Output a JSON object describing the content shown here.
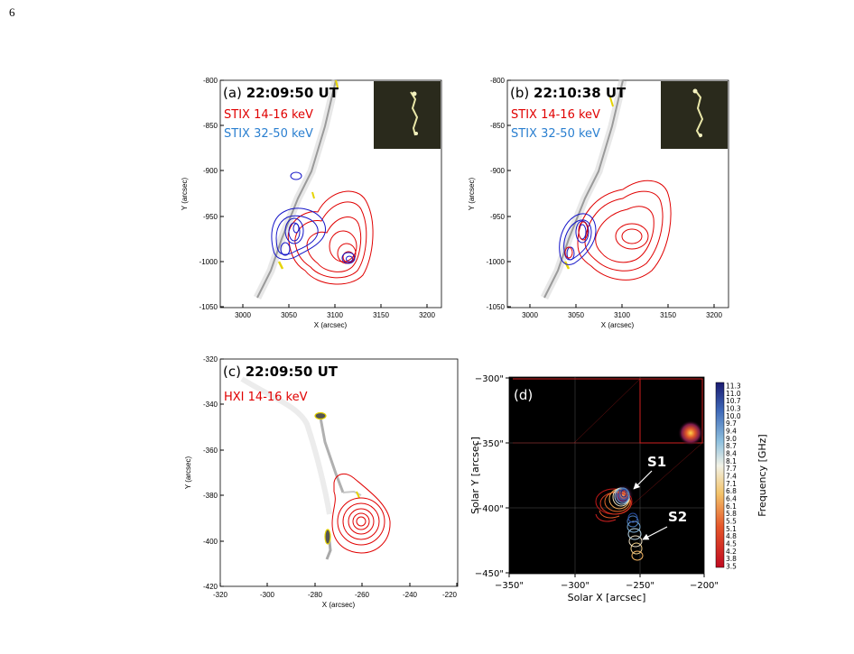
{
  "page_number": "6",
  "colors": {
    "red": "#e00000",
    "blue": "#1010c8",
    "light_blue": "#2a7fd0"
  },
  "panel_a": {
    "label": "(a)",
    "time": "22:09:50 UT",
    "legend": [
      "STIX 14-16 keV",
      "STIX 32-50 keV"
    ],
    "x_ticks": [
      "3000",
      "3050",
      "3100",
      "3150",
      "3200"
    ],
    "y_ticks": [
      "-800",
      "-850",
      "-900",
      "-950",
      "-1000",
      "-1050"
    ],
    "xlabel": "X (arcsec)",
    "ylabel": "Y (arcsec)"
  },
  "panel_b": {
    "label": "(b)",
    "time": "22:10:38 UT",
    "legend": [
      "STIX 14-16 keV",
      "STIX 32-50 keV"
    ],
    "x_ticks": [
      "3000",
      "3050",
      "3100",
      "3150",
      "3200"
    ],
    "y_ticks": [
      "-800",
      "-850",
      "-900",
      "-950",
      "-1000",
      "-1050"
    ],
    "xlabel": "X (arcsec)",
    "ylabel": "Y (arcsec)"
  },
  "panel_c": {
    "label": "(c)",
    "time": "22:09:50 UT",
    "legend": [
      "HXI 14-16 keV"
    ],
    "x_ticks": [
      "-320",
      "-300",
      "-280",
      "-260",
      "-240",
      "-220"
    ],
    "y_ticks": [
      "-320",
      "-340",
      "-360",
      "-380",
      "-400",
      "-420"
    ],
    "xlabel": "X (arcsec)",
    "ylabel": "Y (arcsec)"
  },
  "panel_d": {
    "label": "(d)",
    "x_ticks": [
      "−350\"",
      "−300\"",
      "−250\"",
      "−200\""
    ],
    "y_ticks": [
      "−300\"",
      "−350\"",
      "−400\"",
      "−450\""
    ],
    "xlabel": "Solar X [arcsec]",
    "ylabel": "Solar Y [arcsec]",
    "sources": [
      "S1",
      "S2"
    ],
    "colorbar_label": "Frequency [GHz]",
    "colorbar_ticks": [
      "11.3",
      "11.0",
      "10.7",
      "10.3",
      "10.0",
      "9.7",
      "9.4",
      "9.0",
      "8.7",
      "8.4",
      "8.1",
      "7.7",
      "7.4",
      "7.1",
      "6.8",
      "6.4",
      "6.1",
      "5.8",
      "5.5",
      "5.1",
      "4.8",
      "4.5",
      "4.2",
      "3.8",
      "3.5"
    ]
  }
}
